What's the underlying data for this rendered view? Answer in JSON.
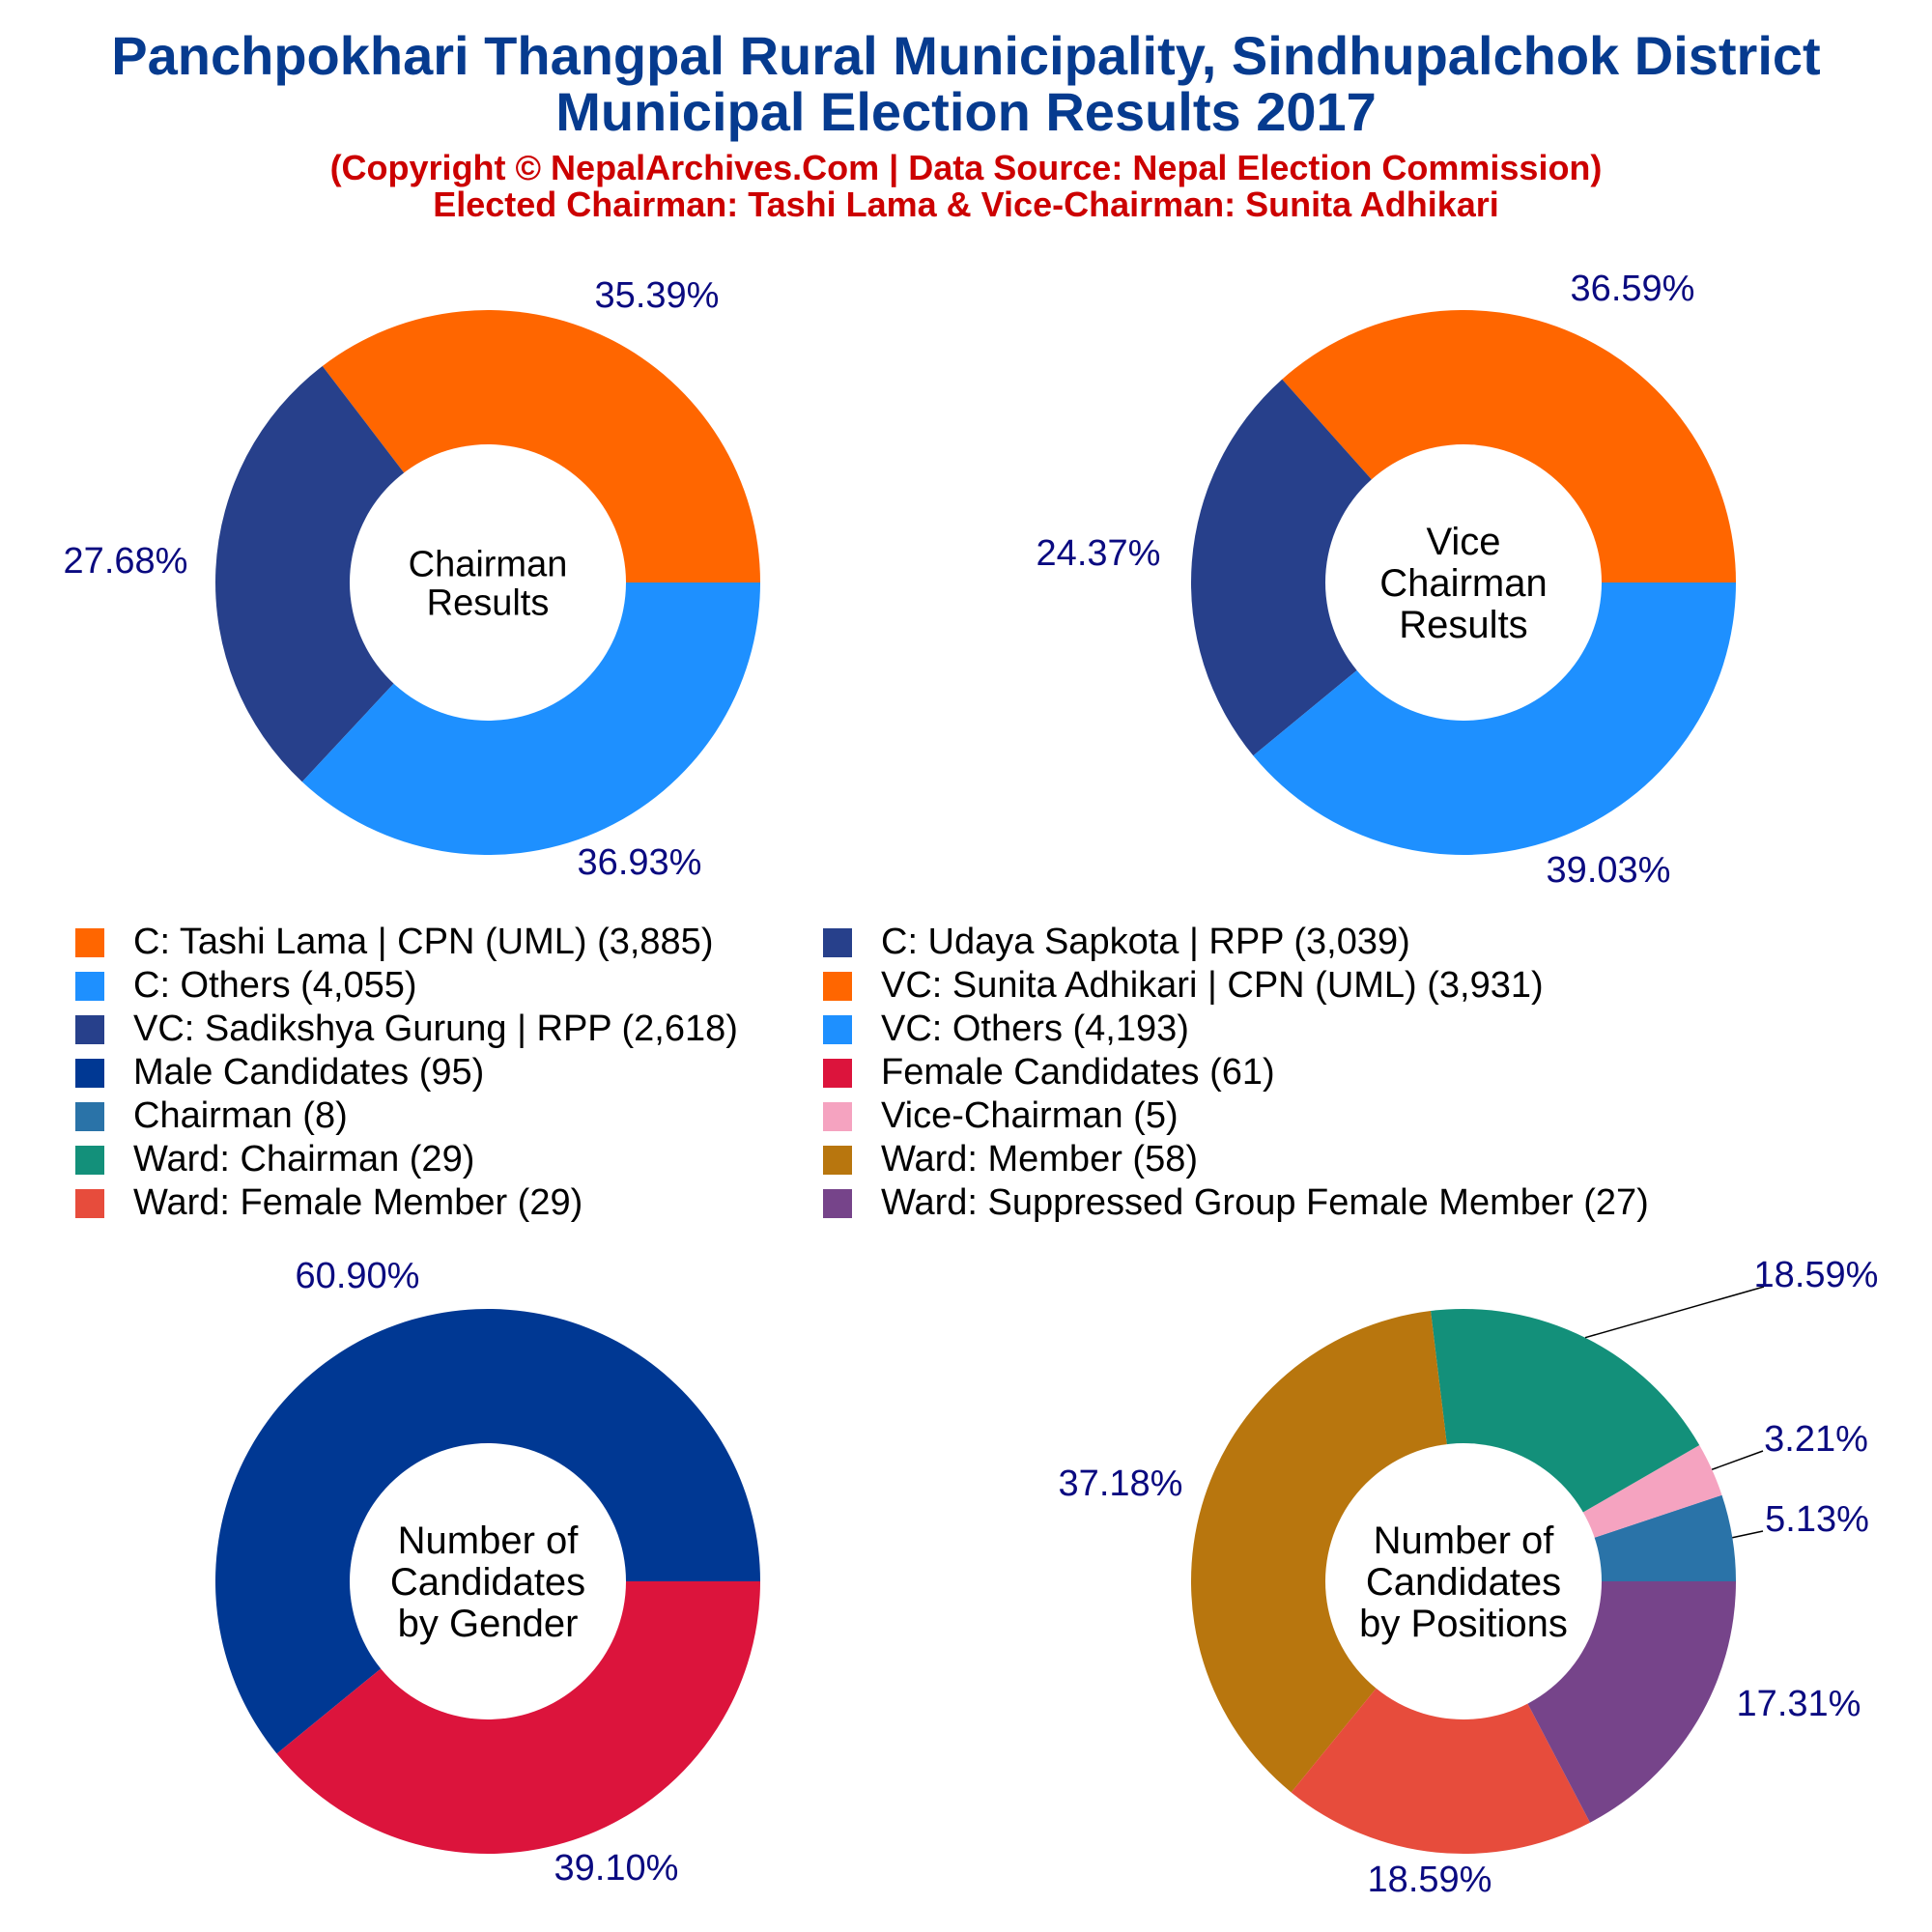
{
  "header": {
    "title_line1": "Panchpokhari Thangpal Rural Municipality, Sindhupalchok District",
    "title_line2": "Municipal Election Results 2017",
    "subtitle_line1": "(Copyright © NepalArchives.Com | Data Source: Nepal Election Commission)",
    "subtitle_line2": "Elected Chairman: Tashi Lama & Vice-Chairman: Sunita Adhikari"
  },
  "colors": {
    "title": "#063b8f",
    "subtitle": "#cc0000",
    "pct_label": "#0a0a80"
  },
  "legend": {
    "left": [
      {
        "label": "C: Tashi Lama | CPN (UML) (3,885)",
        "color": "#ff6600"
      },
      {
        "label": "C: Others (4,055)",
        "color": "#1e90ff"
      },
      {
        "label": "VC: Sadikshya Gurung | RPP (2,618)",
        "color": "#27408b"
      },
      {
        "label": "Male Candidates (95)",
        "color": "#003893"
      },
      {
        "label": "Chairman (8)",
        "color": "#2a73a8"
      },
      {
        "label": "Ward: Chairman (29)",
        "color": "#13907a"
      },
      {
        "label": "Ward: Female Member (29)",
        "color": "#e74c3c"
      }
    ],
    "right": [
      {
        "label": "C: Udaya Sapkota | RPP (3,039)",
        "color": "#27408b"
      },
      {
        "label": "VC: Sunita Adhikari | CPN (UML) (3,931)",
        "color": "#ff6600"
      },
      {
        "label": "VC: Others (4,193)",
        "color": "#1e90ff"
      },
      {
        "label": "Female Candidates (61)",
        "color": "#dc143c"
      },
      {
        "label": "Vice-Chairman (5)",
        "color": "#f5a3c0"
      },
      {
        "label": "Ward: Member (58)",
        "color": "#b8760e"
      },
      {
        "label": "Ward: Suppressed Group Female Member (27)",
        "color": "#76448a"
      }
    ]
  },
  "chart_data": [
    {
      "type": "pie",
      "center_label": [
        "Chairman",
        "Results"
      ],
      "slices": [
        {
          "name": "C: Tashi Lama | CPN (UML)",
          "value": 3885,
          "pct_label": "35.39%",
          "color": "#ff6600"
        },
        {
          "name": "C: Udaya Sapkota | RPP",
          "value": 3039,
          "pct_label": "27.68%",
          "color": "#27408b"
        },
        {
          "name": "C: Others",
          "value": 4055,
          "pct_label": "36.93%",
          "color": "#1e90ff"
        }
      ]
    },
    {
      "type": "pie",
      "center_label": [
        "Vice",
        "Chairman",
        "Results"
      ],
      "slices": [
        {
          "name": "VC: Sunita Adhikari | CPN (UML)",
          "value": 3931,
          "pct_label": "36.59%",
          "color": "#ff6600"
        },
        {
          "name": "VC: Sadikshya Gurung | RPP",
          "value": 2618,
          "pct_label": "24.37%",
          "color": "#27408b"
        },
        {
          "name": "VC: Others",
          "value": 4193,
          "pct_label": "39.03%",
          "color": "#1e90ff"
        }
      ]
    },
    {
      "type": "pie",
      "center_label": [
        "Number of",
        "Candidates",
        "by Gender"
      ],
      "slices": [
        {
          "name": "Male Candidates",
          "value": 95,
          "pct_label": "60.90%",
          "color": "#003893"
        },
        {
          "name": "Female Candidates",
          "value": 61,
          "pct_label": "39.10%",
          "color": "#dc143c"
        }
      ]
    },
    {
      "type": "pie",
      "center_label": [
        "Number of",
        "Candidates",
        "by Positions"
      ],
      "slices": [
        {
          "name": "Chairman",
          "value": 8,
          "pct_label": "5.13%",
          "color": "#2a73a8"
        },
        {
          "name": "Vice-Chairman",
          "value": 5,
          "pct_label": "3.21%",
          "color": "#f5a3c0"
        },
        {
          "name": "Ward: Chairman",
          "value": 29,
          "pct_label": "18.59%",
          "color": "#13907a"
        },
        {
          "name": "Ward: Member",
          "value": 58,
          "pct_label": "37.18%",
          "color": "#b8760e"
        },
        {
          "name": "Ward: Female Member",
          "value": 29,
          "pct_label": "18.59%",
          "color": "#e74c3c"
        },
        {
          "name": "Ward: Suppressed Group Female Member",
          "value": 27,
          "pct_label": "17.31%",
          "color": "#76448a"
        }
      ]
    }
  ]
}
